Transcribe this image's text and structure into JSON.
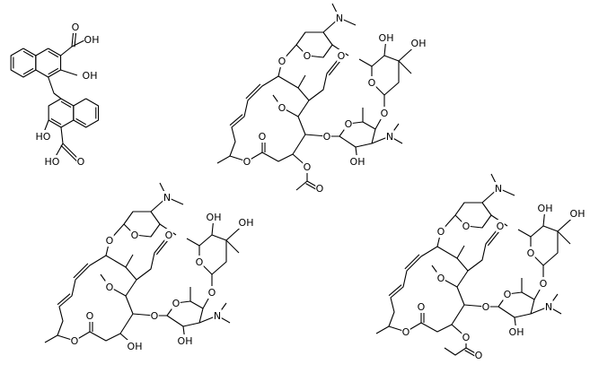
{
  "molecules": [
    {
      "labels": [
        "O",
        "OH",
        "OH",
        "HO",
        "HO",
        "O"
      ]
    },
    {
      "labels": [
        "N",
        "OH",
        "OH",
        "O",
        "O",
        "O",
        "O",
        "O",
        "O",
        "O",
        "O",
        "N",
        "OH",
        "O",
        "O",
        "O",
        "O"
      ]
    },
    {
      "labels": [
        "N",
        "OH",
        "OH",
        "O",
        "O",
        "O",
        "O",
        "O",
        "O",
        "O",
        "O",
        "N",
        "OH",
        "O",
        "O",
        "OH"
      ]
    },
    {
      "labels": [
        "N",
        "OH",
        "OH",
        "O",
        "O",
        "O",
        "O",
        "O",
        "O",
        "O",
        "O",
        "N",
        "OH",
        "O",
        "O",
        "O",
        "O"
      ]
    }
  ]
}
